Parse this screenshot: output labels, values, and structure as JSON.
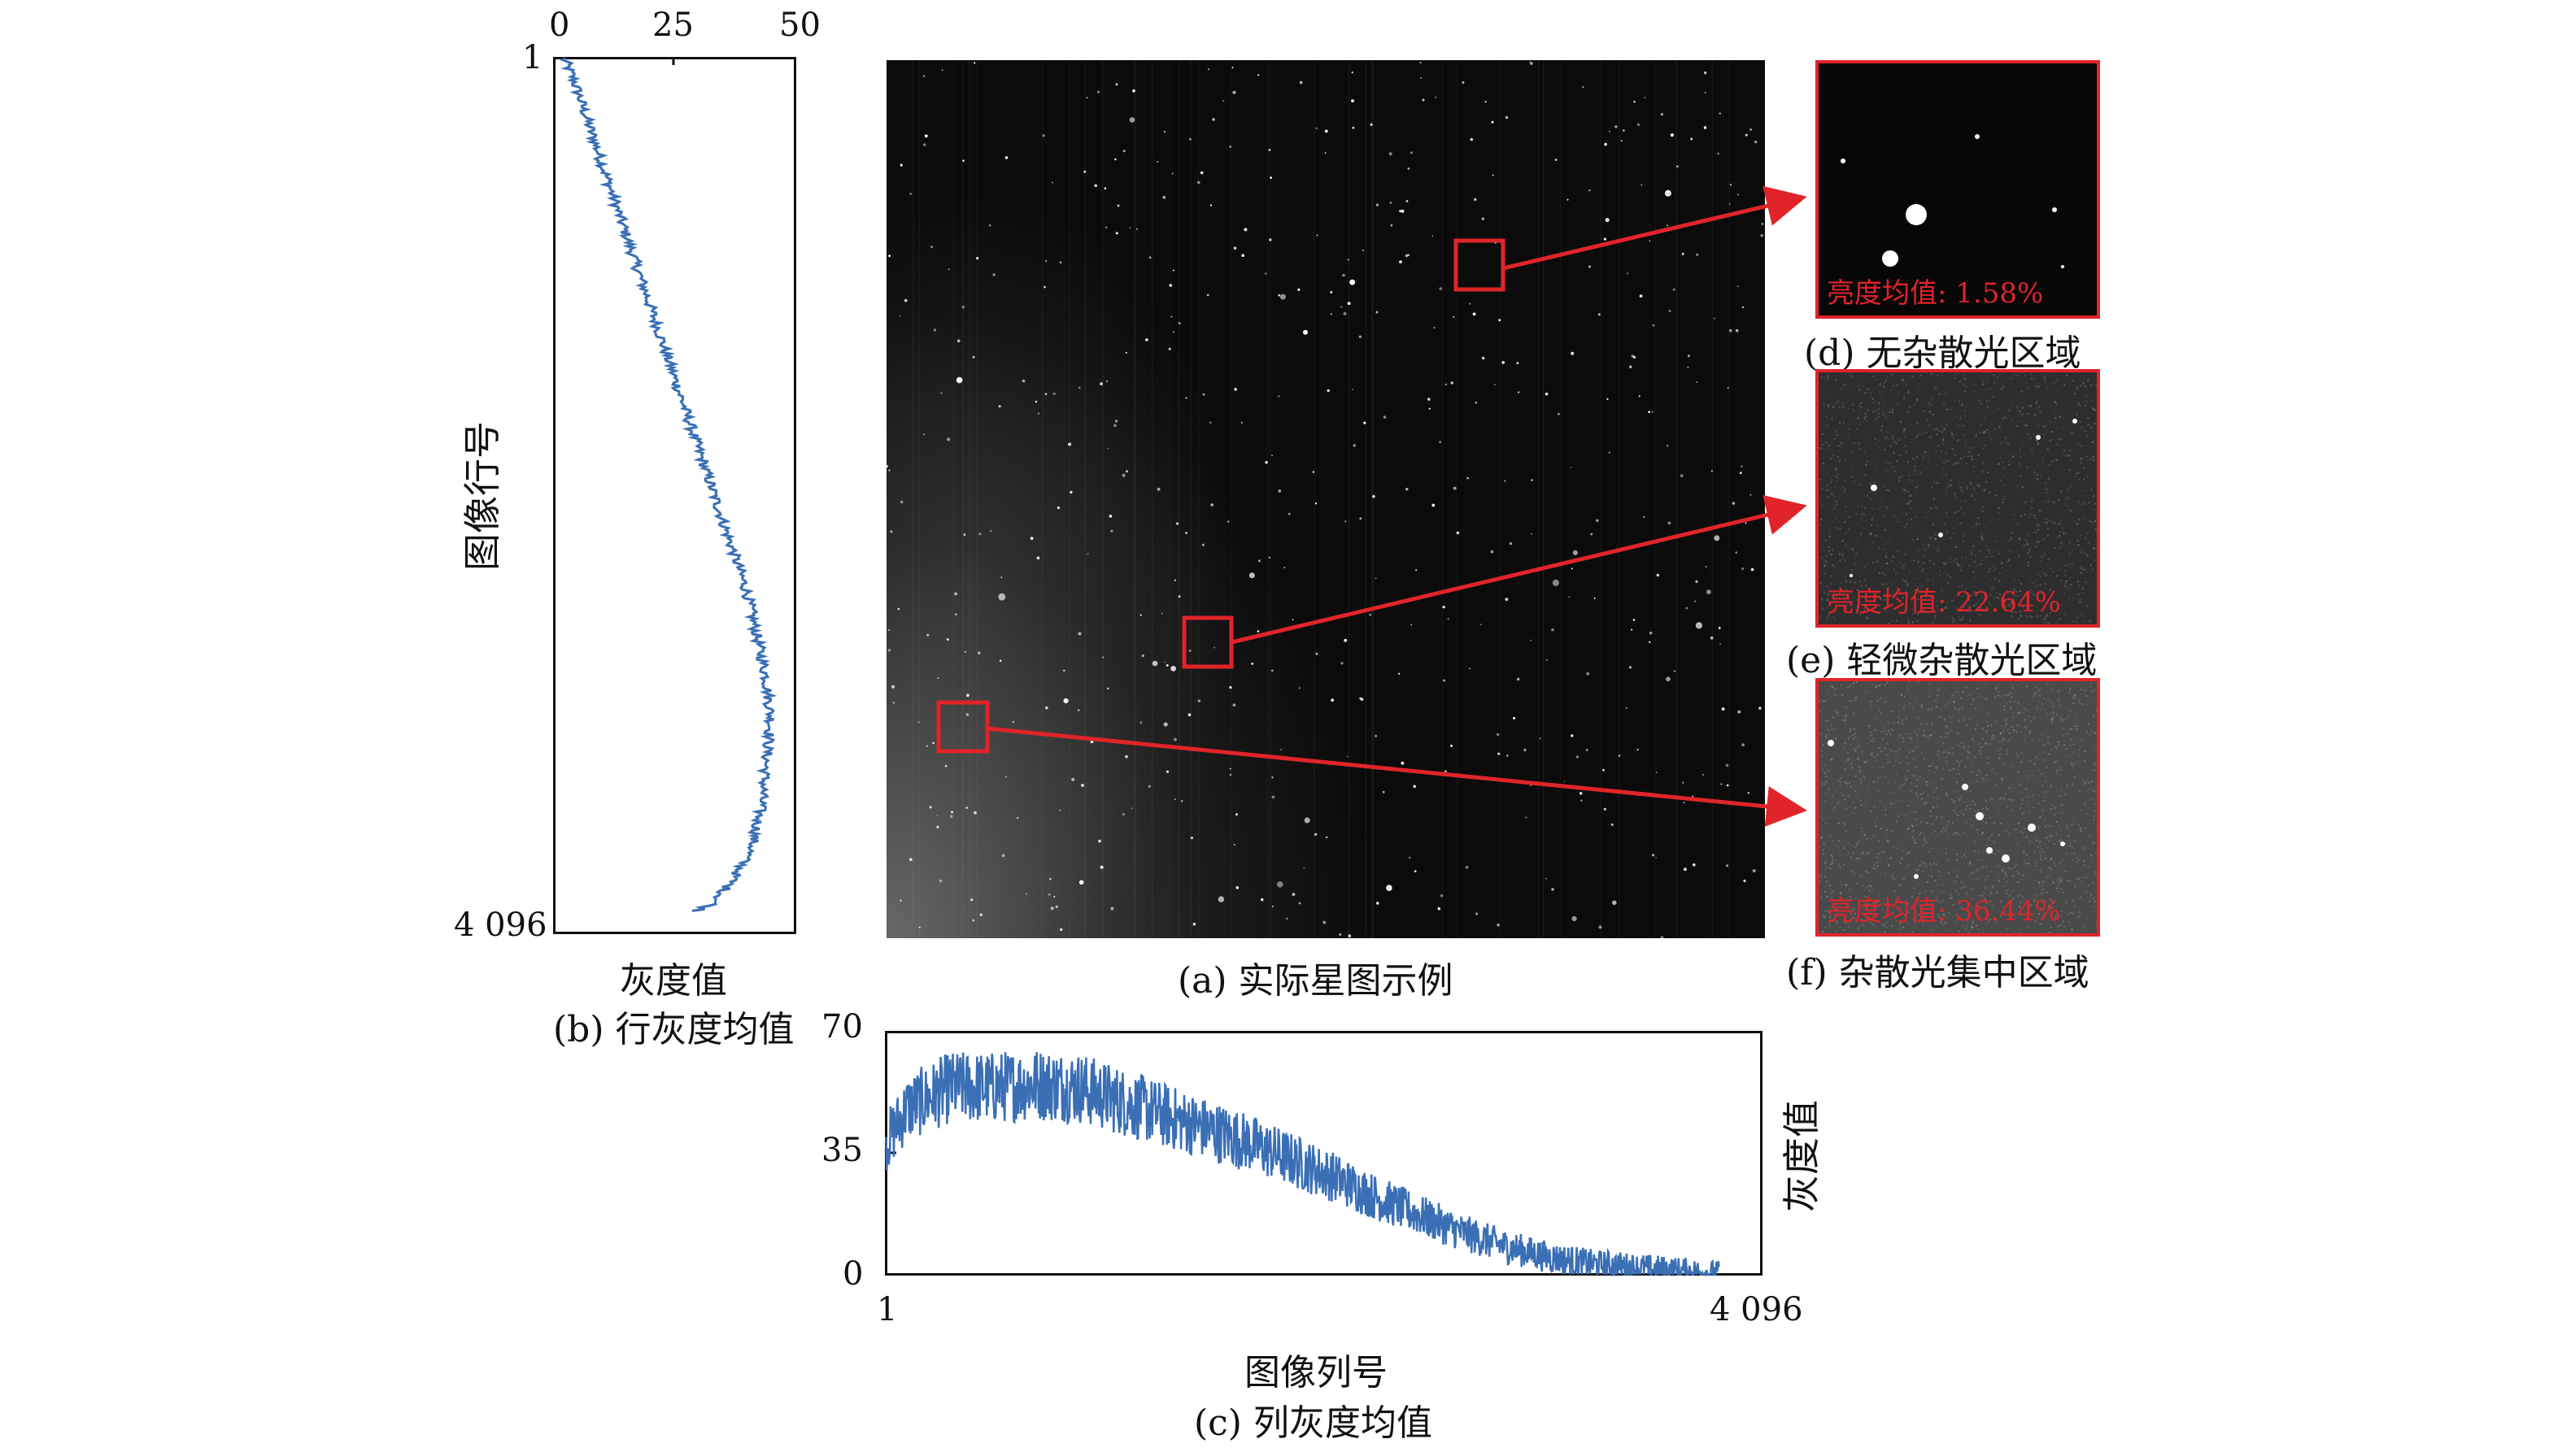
{
  "panel_b": {
    "x_ticks": [
      "0",
      "25",
      "50"
    ],
    "y_top": "1",
    "y_bottom": "4 096",
    "ylabel": "图像行号",
    "xlabel": "灰度值",
    "caption": "(b) 行灰度均值"
  },
  "panel_a": {
    "caption": "(a) 实际星图示例"
  },
  "panel_c": {
    "y_ticks": [
      "70",
      "35",
      "0"
    ],
    "x_left": "1",
    "x_right": "4 096",
    "xlabel": "图像列号",
    "ylabel": "灰度值",
    "caption": "(c) 列灰度均值"
  },
  "insets": [
    {
      "label": "亮度均值: 1.58%",
      "caption": "(d) 无杂散光区域"
    },
    {
      "label": "亮度均值: 22.64%",
      "caption": "(e) 轻微杂散光区域"
    },
    {
      "label": "亮度均值: 36.44%",
      "caption": "(f) 杂散光集中区域"
    }
  ],
  "colors": {
    "curve": "#3a6fb5",
    "highlight": "#e0242a",
    "image_dark": "#0b0b0b"
  },
  "chart_data": [
    {
      "type": "line",
      "title": "(b) 行灰度均值",
      "xlabel": "灰度值",
      "ylabel": "图像行号",
      "xlim": [
        0,
        50
      ],
      "ylim": [
        1,
        4096
      ],
      "y_axis_inverted": true,
      "series": [
        {
          "x": [
            2,
            4,
            7,
            10,
            13,
            16,
            19,
            22,
            25,
            28,
            31,
            34,
            37,
            40,
            42,
            44,
            45,
            44,
            43,
            41,
            37,
            33,
            29
          ],
          "y": [
            1,
            100,
            300,
            500,
            700,
            900,
            1100,
            1300,
            1500,
            1700,
            1900,
            2100,
            2300,
            2500,
            2700,
            2900,
            3100,
            3300,
            3500,
            3700,
            3850,
            3960,
            4000
          ]
        }
      ]
    },
    {
      "type": "line",
      "title": "(c) 列灰度均值",
      "xlabel": "图像列号",
      "ylabel": "灰度值",
      "xlim": [
        1,
        4096
      ],
      "ylim": [
        0,
        70
      ],
      "series": [
        {
          "x": [
            1,
            100,
            300,
            500,
            700,
            900,
            1100,
            1300,
            1500,
            1700,
            1900,
            2100,
            2300,
            2500,
            2700,
            2900,
            3100,
            3300,
            3500,
            3700,
            3900
          ],
          "y": [
            38,
            48,
            54,
            54,
            55,
            54,
            50,
            46,
            42,
            38,
            33,
            28,
            22,
            17,
            12,
            8,
            5,
            3,
            2,
            1,
            0
          ]
        }
      ]
    }
  ]
}
